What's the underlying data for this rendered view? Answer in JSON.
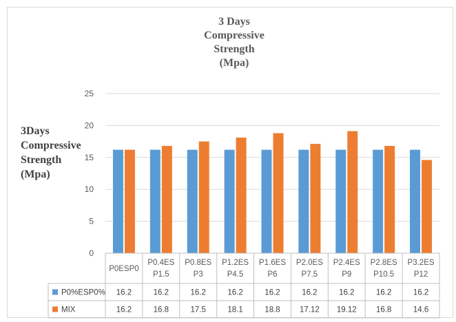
{
  "chart_data": {
    "type": "bar",
    "title_lines": [
      "3 Days",
      "Compressive",
      "Strength",
      "(Mpa)"
    ],
    "ylabel_lines": [
      "3Days",
      "Compressive",
      "Strength",
      "(Mpa)"
    ],
    "ylim": [
      0,
      25
    ],
    "yticks": [
      0,
      5,
      10,
      15,
      20,
      25
    ],
    "grid": true,
    "legend": "data-table",
    "categories": [
      [
        "P0ESP0"
      ],
      [
        "P0.4ES",
        "P1.5"
      ],
      [
        "P0.8ES",
        "P3"
      ],
      [
        "P1.2ES",
        "P4.5"
      ],
      [
        "P1.6ES",
        "P6"
      ],
      [
        "P2.0ES",
        "P7.5"
      ],
      [
        "P2.4ES",
        "P9"
      ],
      [
        "P2.8ES",
        "P10.5"
      ],
      [
        "P3.2ES",
        "P12"
      ]
    ],
    "series": [
      {
        "name": "P0%ESP0%",
        "color": "#5B9BD5",
        "values": [
          16.2,
          16.2,
          16.2,
          16.2,
          16.2,
          16.2,
          16.2,
          16.2,
          16.2
        ],
        "labels": [
          "16.2",
          "16.2",
          "16.2",
          "16.2",
          "16.2",
          "16.2",
          "16.2",
          "16.2",
          "16.2"
        ]
      },
      {
        "name": "MIX",
        "color": "#ED7D31",
        "values": [
          16.2,
          16.8,
          17.5,
          18.1,
          18.8,
          17.12,
          19.12,
          16.8,
          14.6
        ],
        "labels": [
          "16.2",
          "16.8",
          "17.5",
          "18.1",
          "18.8",
          "17.12",
          "19.12",
          "16.8",
          "14.6"
        ]
      }
    ]
  }
}
